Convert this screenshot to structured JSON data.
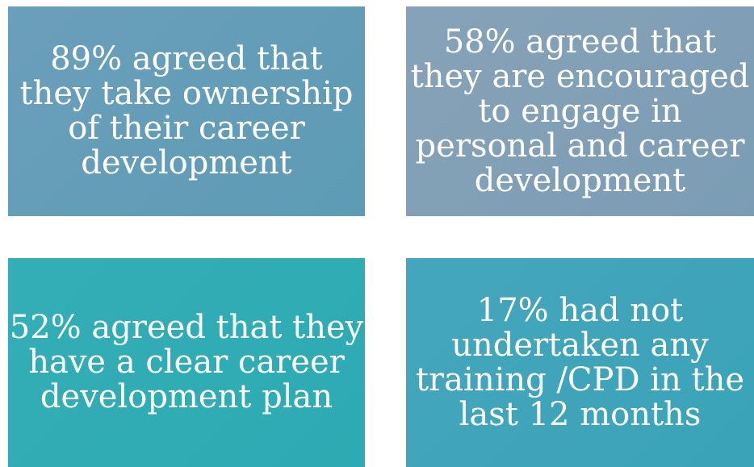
{
  "tiles": [
    {
      "lines": [
        "89% agreed that",
        "they take ownership",
        "of their career",
        "development"
      ]
    },
    {
      "lines": [
        "58% agreed that",
        "they are encouraged",
        "to engage in",
        "personal and career",
        "development"
      ]
    },
    {
      "lines": [
        "52% agreed that they",
        "have a clear career",
        "development plan"
      ]
    },
    {
      "lines": [
        "17% had not",
        "undertaken any",
        "training /CPD in the",
        "last 12 months"
      ]
    }
  ]
}
